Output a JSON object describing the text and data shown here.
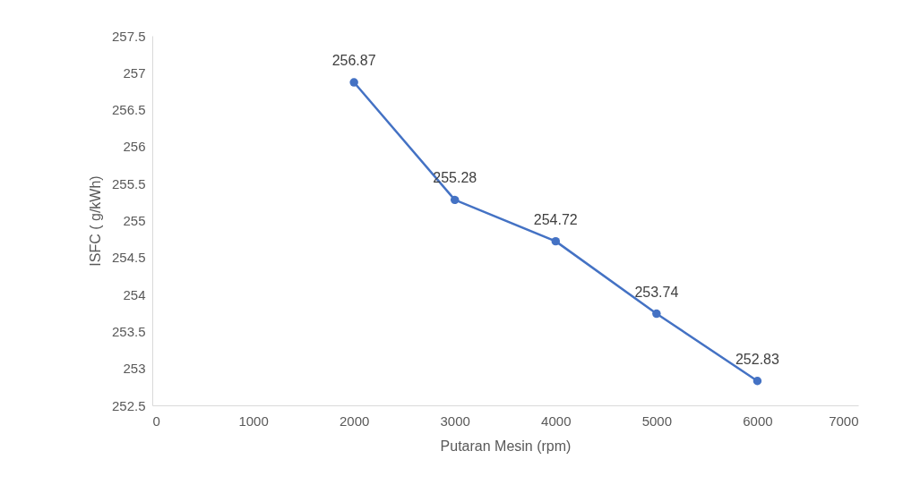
{
  "chart_data": {
    "type": "line",
    "xlabel": "Putaran Mesin (rpm)",
    "ylabel": "ISFC ( g/kWh)",
    "x": [
      2000,
      3000,
      4000,
      5000,
      6000
    ],
    "series": [
      {
        "color": "#4472c4",
        "values": [
          256.87,
          255.28,
          254.72,
          253.74,
          252.83
        ]
      }
    ],
    "xlim": [
      0,
      7000
    ],
    "xticks": [
      0,
      1000,
      2000,
      3000,
      4000,
      5000,
      6000,
      7000
    ],
    "ylim": [
      252.5,
      257.5
    ],
    "yticks": [
      252.5,
      253,
      253.5,
      254,
      254.5,
      255,
      255.5,
      256,
      256.5,
      257,
      257.5
    ],
    "grid": false,
    "marker": "circle",
    "line_style": "solid",
    "data_labels": true
  }
}
